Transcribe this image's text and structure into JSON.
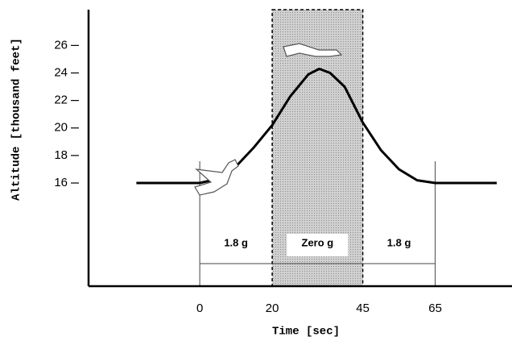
{
  "chart_data": {
    "type": "line",
    "x_label": "Time [sec]",
    "y_label": "Altitude [thousand feet]",
    "x": [
      -17.5,
      0,
      5,
      10,
      15,
      20,
      25,
      30,
      33,
      36,
      40,
      45,
      50,
      55,
      60,
      65,
      82
    ],
    "series": [
      {
        "color": "#000000",
        "values": [
          16,
          16,
          16.3,
          17.2,
          18.6,
          20.2,
          22.3,
          23.9,
          24.3,
          24.0,
          23.0,
          20.4,
          18.4,
          17.0,
          16.2,
          16,
          16
        ]
      }
    ],
    "xlim": [
      -30.7,
      86.2
    ],
    "xticks": [
      0,
      20,
      45,
      65
    ],
    "ylim": [
      8.5,
      28.6
    ],
    "yticks": [
      16,
      18,
      20,
      22,
      24,
      26
    ],
    "grid": false,
    "phases": [
      {
        "label": "1.8 g",
        "x": [
          0,
          20
        ],
        "shaded": false
      },
      {
        "label": "Zero g",
        "x": [
          20,
          45
        ],
        "shaded": true
      },
      {
        "label": "1.8 g",
        "x": [
          45,
          65
        ],
        "shaded": false
      }
    ]
  }
}
